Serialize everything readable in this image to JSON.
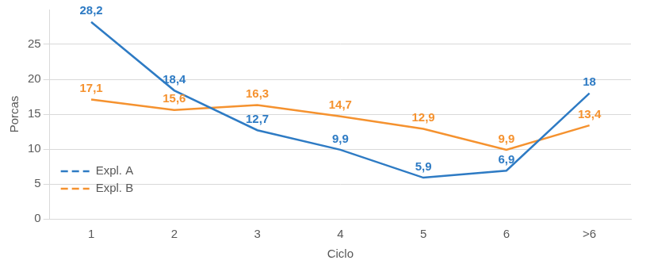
{
  "chart_data": {
    "type": "line",
    "x_label": "Ciclo",
    "y_label": "Porcas",
    "categories": [
      "1",
      "2",
      "3",
      "4",
      "5",
      "6",
      ">6"
    ],
    "series": [
      {
        "name": "Expl. A",
        "color": "#2e7bc4",
        "values": [
          28.2,
          18.4,
          12.7,
          9.9,
          5.9,
          6.9,
          18
        ],
        "value_labels": [
          "28,2",
          "18,4",
          "12,7",
          "9,9",
          "5,9",
          "6,9",
          "18"
        ]
      },
      {
        "name": "Expl. B",
        "color": "#f5922f",
        "values": [
          17.1,
          15.6,
          16.3,
          14.7,
          12.9,
          9.9,
          13.4
        ],
        "value_labels": [
          "17,1",
          "15,6",
          "16,3",
          "14,7",
          "12,9",
          "9,9",
          "13,4"
        ]
      }
    ],
    "ylim": [
      0,
      30
    ],
    "yticks": [
      0,
      5,
      10,
      15,
      20,
      25
    ],
    "grid": true,
    "legend": "lower left",
    "data_labels": true
  }
}
